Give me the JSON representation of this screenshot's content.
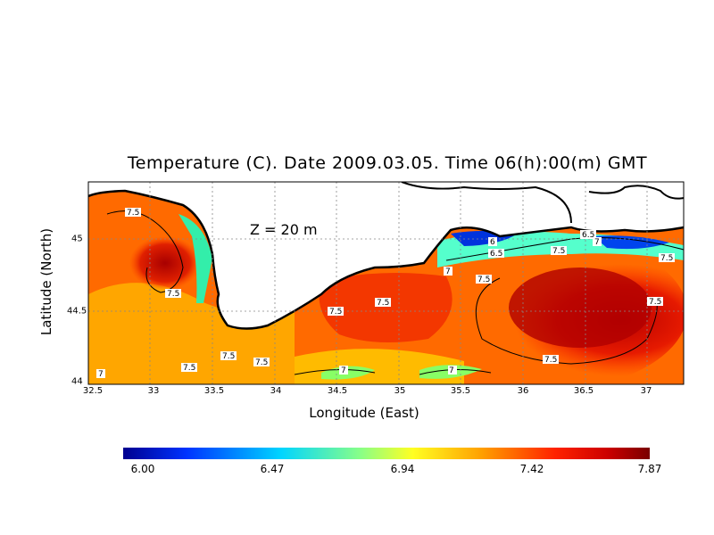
{
  "title": "Temperature (C). Date 2009.03.05. Time 06(h):00(m) GMT",
  "depth_label": "Z = 20 m",
  "x_axis": {
    "label": "Longitude (East)",
    "ticks": [
      "32.5",
      "33",
      "33.5",
      "34",
      "34.5",
      "35",
      "35.5",
      "36",
      "36.5",
      "37"
    ]
  },
  "y_axis": {
    "label": "Latitude (North)",
    "ticks": [
      "45",
      "44.5",
      "44"
    ]
  },
  "colorbar": {
    "labels": [
      "6.00",
      "6.47",
      "6.94",
      "7.42",
      "7.87"
    ],
    "colors": [
      "#00008f",
      "#0044ff",
      "#00ccff",
      "#66ffaa",
      "#ffff33",
      "#ffaa00",
      "#ff3300",
      "#cc0000",
      "#7a0000"
    ]
  },
  "chart_data": {
    "type": "heatmap",
    "title": "Temperature (C). Date 2009.03.05. Time 06(h):00(m) GMT",
    "xlabel": "Longitude (East)",
    "ylabel": "Latitude (North)",
    "xlim": [
      32.5,
      37.3
    ],
    "ylim": [
      43.98,
      45.33
    ],
    "value_range": [
      6.0,
      7.87
    ],
    "contour_levels": [
      "6",
      "6.5",
      "7",
      "7.5"
    ],
    "annotation": "Z = 20 m"
  }
}
